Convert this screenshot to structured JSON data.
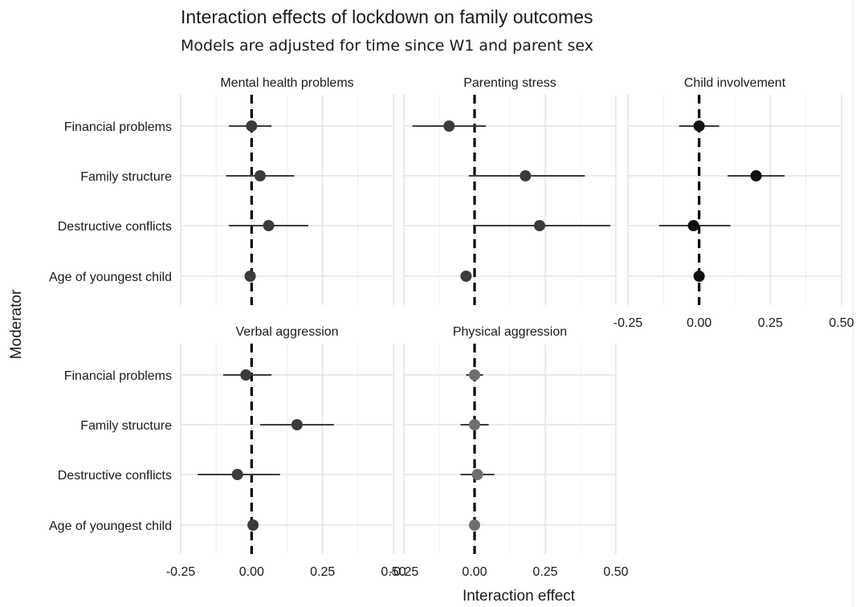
{
  "title": "Interaction effects of lockdown on family outcomes",
  "subtitle": "Models are adjusted for time since W1 and parent sex",
  "colors": {
    "grid": "#e3e3e3",
    "reference_line": "#000000",
    "point_dark": "#111111",
    "point_mid": "#3a3a3a",
    "point_light": "#6e6e6e"
  },
  "chart_data": {
    "type": "scatter",
    "style": "forest plot (point estimates with confidence intervals), small multiples",
    "xlabel": "Interaction effect",
    "ylabel": "Moderator",
    "xlim": [
      -0.25,
      0.5
    ],
    "x_ticks": [
      -0.25,
      0,
      0.25,
      0.5
    ],
    "x_tick_labels": [
      "-0.25",
      "0.00",
      "0.25",
      "0.50"
    ],
    "moderators": [
      "Financial problems",
      "Family structure",
      "Destructive conflicts",
      "Age of youngest child"
    ],
    "reference_x": 0,
    "grid": true,
    "panels": [
      {
        "name": "Mental health problems",
        "estimates": [
          {
            "moderator": "Financial problems",
            "x": 0.0,
            "lo": -0.08,
            "hi": 0.07
          },
          {
            "moderator": "Family structure",
            "x": 0.03,
            "lo": -0.09,
            "hi": 0.15
          },
          {
            "moderator": "Destructive conflicts",
            "x": 0.06,
            "lo": -0.08,
            "hi": 0.2
          },
          {
            "moderator": "Age of youngest child",
            "x": -0.005,
            "lo": -0.015,
            "hi": 0.005
          }
        ]
      },
      {
        "name": "Parenting stress",
        "estimates": [
          {
            "moderator": "Financial problems",
            "x": -0.09,
            "lo": -0.22,
            "hi": 0.04
          },
          {
            "moderator": "Family structure",
            "x": 0.18,
            "lo": -0.02,
            "hi": 0.39
          },
          {
            "moderator": "Destructive conflicts",
            "x": 0.23,
            "lo": 0.0,
            "hi": 0.48
          },
          {
            "moderator": "Age of youngest child",
            "x": -0.03,
            "lo": -0.04,
            "hi": -0.02
          }
        ]
      },
      {
        "name": "Child involvement",
        "estimates": [
          {
            "moderator": "Financial problems",
            "x": 0.0,
            "lo": -0.07,
            "hi": 0.07
          },
          {
            "moderator": "Family structure",
            "x": 0.2,
            "lo": 0.1,
            "hi": 0.3
          },
          {
            "moderator": "Destructive conflicts",
            "x": -0.02,
            "lo": -0.14,
            "hi": 0.11
          },
          {
            "moderator": "Age of youngest child",
            "x": 0.0,
            "lo": -0.01,
            "hi": 0.01
          }
        ]
      },
      {
        "name": "Verbal aggression",
        "estimates": [
          {
            "moderator": "Financial problems",
            "x": -0.02,
            "lo": -0.1,
            "hi": 0.07
          },
          {
            "moderator": "Family structure",
            "x": 0.16,
            "lo": 0.03,
            "hi": 0.29
          },
          {
            "moderator": "Destructive conflicts",
            "x": -0.05,
            "lo": -0.19,
            "hi": 0.1
          },
          {
            "moderator": "Age of youngest child",
            "x": 0.005,
            "lo": -0.005,
            "hi": 0.015
          }
        ]
      },
      {
        "name": "Physical aggression",
        "estimates": [
          {
            "moderator": "Financial problems",
            "x": 0.0,
            "lo": -0.03,
            "hi": 0.03
          },
          {
            "moderator": "Family structure",
            "x": 0.0,
            "lo": -0.05,
            "hi": 0.05
          },
          {
            "moderator": "Destructive conflicts",
            "x": 0.01,
            "lo": -0.05,
            "hi": 0.07
          },
          {
            "moderator": "Age of youngest child",
            "x": 0.0,
            "lo": -0.01,
            "hi": 0.01
          }
        ]
      }
    ]
  }
}
